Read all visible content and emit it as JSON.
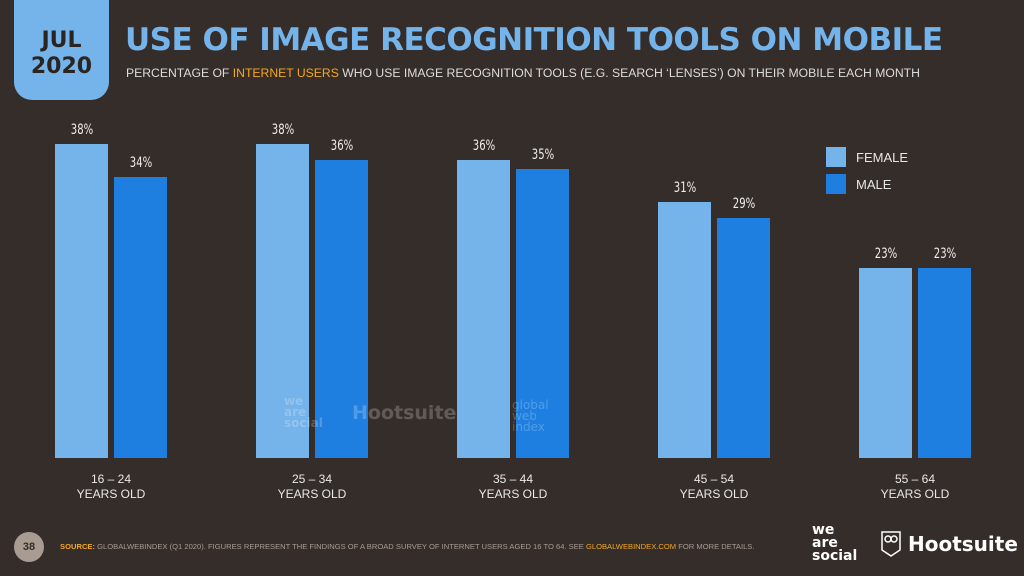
{
  "header": {
    "date_month": "JUL",
    "date_year": "2020",
    "title": "USE OF IMAGE RECOGNITION TOOLS ON MOBILE",
    "subtitle_pre": "PERCENTAGE OF ",
    "subtitle_highlight": "INTERNET USERS",
    "subtitle_post": " WHO USE IMAGE RECOGNITION TOOLS (E.G. SEARCH ‘LENSES’) ON THEIR MOBILE EACH MONTH"
  },
  "legend": [
    {
      "label": "FEMALE",
      "color": "#75b3eb"
    },
    {
      "label": "MALE",
      "color": "#1f7fe0"
    }
  ],
  "chart_data": {
    "type": "bar",
    "title": "USE OF IMAGE RECOGNITION TOOLS ON MOBILE",
    "subtitle": "PERCENTAGE OF INTERNET USERS WHO USE IMAGE RECOGNITION TOOLS (E.G. SEARCH ‘LENSES’) ON THEIR MOBILE EACH MONTH",
    "categories": [
      "16 – 24 YEARS OLD",
      "25 – 34 YEARS OLD",
      "35 – 44 YEARS OLD",
      "45 – 54 YEARS OLD",
      "55 – 64 YEARS OLD"
    ],
    "category_lines": [
      [
        "16 – 24",
        "YEARS OLD"
      ],
      [
        "25 – 34",
        "YEARS OLD"
      ],
      [
        "35 – 44",
        "YEARS OLD"
      ],
      [
        "45 – 54",
        "YEARS OLD"
      ],
      [
        "55 – 64",
        "YEARS OLD"
      ]
    ],
    "series": [
      {
        "name": "FEMALE",
        "values": [
          38,
          38,
          36,
          31,
          23
        ],
        "labels": [
          "38%",
          "38%",
          "36%",
          "31%",
          "23%"
        ],
        "color": "#75b3eb"
      },
      {
        "name": "MALE",
        "values": [
          34,
          36,
          35,
          29,
          23
        ],
        "labels": [
          "34%",
          "36%",
          "35%",
          "29%",
          "23%"
        ],
        "color": "#1f7fe0"
      }
    ],
    "xlabel": "",
    "ylabel": "",
    "grid": false,
    "legend_position": "right",
    "ylim": [
      0,
      40
    ]
  },
  "watermarks": {
    "we_are_social": "we are social",
    "hootsuite": "Hootsuite",
    "global_web_index": "global web index"
  },
  "footer": {
    "page_number": "38",
    "source_label": "SOURCE:",
    "source_text": " GLOBALWEBINDEX (Q1 2020). FIGURES REPRESENT THE FINDINGS OF A BROAD SURVEY OF INTERNET USERS AGED 16 TO 64. SEE ",
    "source_link": "GLOBALWEBINDEX.COM",
    "source_tail": " FOR MORE DETAILS.",
    "logo_was_1": "we",
    "logo_was_2": "are",
    "logo_was_3": "social",
    "logo_hootsuite": "Hootsuite"
  }
}
